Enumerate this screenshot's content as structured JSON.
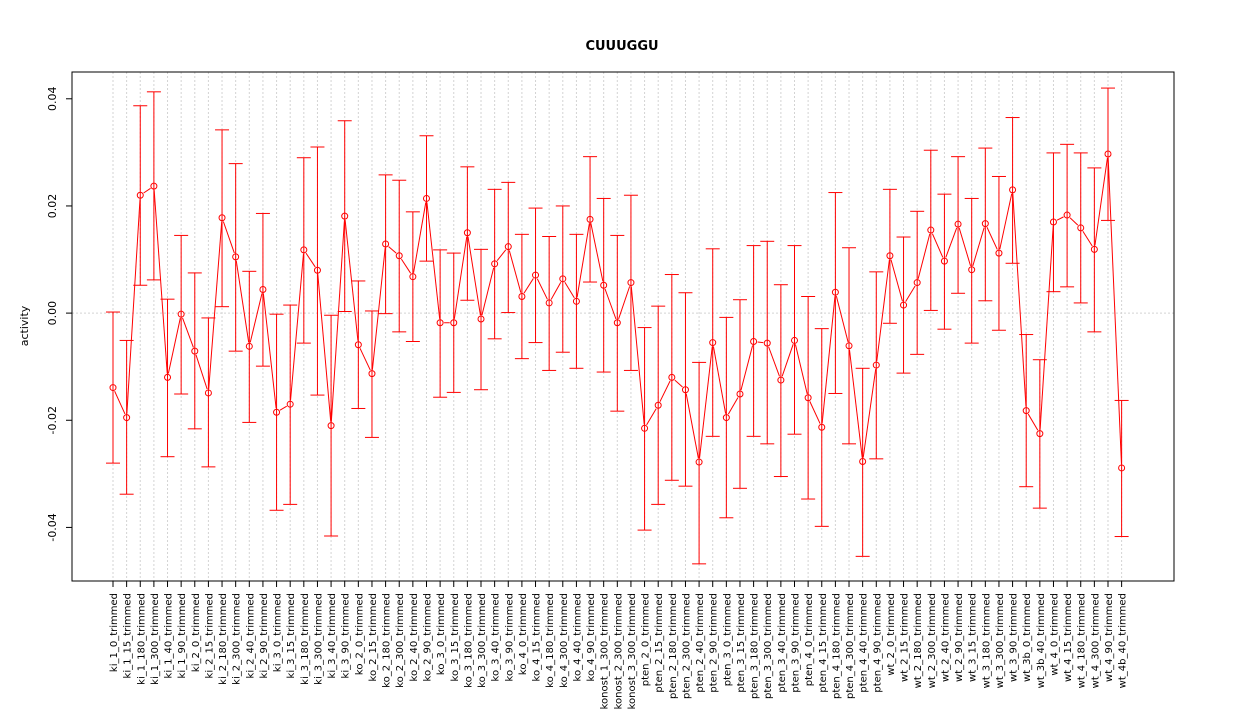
{
  "chart_data": {
    "type": "line",
    "title": "CUUUGGU",
    "xlabel": "",
    "ylabel": "activity",
    "ylim": [
      -0.05,
      0.045
    ],
    "yticks": [
      -0.04,
      -0.02,
      0.0,
      0.02,
      0.04
    ],
    "ytick_labels": [
      "-0.04",
      "-0.02",
      "0.00",
      "0.02",
      "0.04"
    ],
    "grid": true,
    "reference_line": 0.0,
    "series_color": "#ff0000",
    "grid_color": "#d3d3d3",
    "categories": [
      "ki_1_0_trimmed",
      "ki_1_15_trimmed",
      "ki_1_180_trimmed",
      "ki_1_300_trimmed",
      "ki_1_40_trimmed",
      "ki_1_90_trimmed",
      "ki_2_0_trimmed",
      "ki_2_15_trimmed",
      "ki_2_180_trimmed",
      "ki_2_300_trimmed",
      "ki_2_40_trimmed",
      "ki_2_90_trimmed",
      "ki_3_0_trimmed",
      "ki_3_15_trimmed",
      "ki_3_180_trimmed",
      "ki_3_300_trimmed",
      "ki_3_40_trimmed",
      "ki_3_90_trimmed",
      "ko_2_0_trimmed",
      "ko_2_15_trimmed",
      "ko_2_180_trimmed",
      "ko_2_300_trimmed",
      "ko_2_40_trimmed",
      "ko_2_90_trimmed",
      "ko_3_0_trimmed",
      "ko_3_15_trimmed",
      "ko_3_180_trimmed",
      "ko_3_300_trimmed",
      "ko_3_40_trimmed",
      "ko_3_90_trimmed",
      "ko_4_0_trimmed",
      "ko_4_15_trimmed",
      "ko_4_180_trimmed",
      "ko_4_300_trimmed",
      "ko_4_40_trimmed",
      "ko_4_90_trimmed",
      "konost_1_300_trimmed",
      "konost_2_300_trimmed",
      "konost_3_300_trimmed",
      "pten_2_0_trimmed",
      "pten_2_15_trimmed",
      "pten_2_180_trimmed",
      "pten_2_300_trimmed",
      "pten_2_40_trimmed",
      "pten_2_90_trimmed",
      "pten_3_0_trimmed",
      "pten_3_15_trimmed",
      "pten_3_180_trimmed",
      "pten_3_300_trimmed",
      "pten_3_40_trimmed",
      "pten_3_90_trimmed",
      "pten_4_0_trimmed",
      "pten_4_15_trimmed",
      "pten_4_180_trimmed",
      "pten_4_300_trimmed",
      "pten_4_40_trimmed",
      "pten_4_90_trimmed",
      "wt_2_0_trimmed",
      "wt_2_15_trimmed",
      "wt_2_180_trimmed",
      "wt_2_300_trimmed",
      "wt_2_40_trimmed",
      "wt_2_90_trimmed",
      "wt_3_15_trimmed",
      "wt_3_180_trimmed",
      "wt_3_300_trimmed",
      "wt_3_90_trimmed",
      "wt_3b_0_trimmed",
      "wt_3b_40_trimmed",
      "wt_4_0_trimmed",
      "wt_4_15_trimmed",
      "wt_4_180_trimmed",
      "wt_4_300_trimmed",
      "wt_4_90_trimmed",
      "wt_4b_40_trimmed"
    ],
    "values": [
      -0.0139,
      -0.0195,
      0.022,
      0.0237,
      -0.012,
      -0.0002,
      -0.0071,
      -0.0149,
      0.0178,
      0.0105,
      -0.0062,
      0.0044,
      -0.0185,
      -0.017,
      0.0118,
      0.008,
      -0.021,
      0.0181,
      -0.0059,
      -0.0113,
      0.0129,
      0.0107,
      0.0068,
      0.0214,
      -0.0018,
      -0.0018,
      0.015,
      -0.0011,
      0.0092,
      0.0124,
      0.0031,
      0.0071,
      0.0019,
      0.0064,
      0.0022,
      0.0175,
      0.0052,
      -0.0018,
      0.0057,
      -0.0215,
      -0.0172,
      -0.012,
      -0.0143,
      -0.0278,
      -0.0055,
      -0.0195,
      -0.0151,
      -0.0053,
      -0.0056,
      -0.0125,
      -0.0051,
      -0.0158,
      -0.0213,
      0.0039,
      -0.0061,
      -0.0277,
      -0.0097,
      0.0107,
      0.0015,
      0.0057,
      0.0155,
      0.0097,
      0.0166,
      0.0081,
      0.0167,
      0.0112,
      0.023,
      -0.0182,
      -0.0225,
      0.017,
      0.0183,
      0.0159,
      0.0119,
      0.0297,
      -0.0289
    ],
    "error_low": [
      -0.028,
      -0.0338,
      0.0052,
      0.0062,
      -0.0268,
      -0.0151,
      -0.0216,
      -0.0287,
      0.0012,
      -0.0071,
      -0.0204,
      -0.0099,
      -0.0368,
      -0.0357,
      -0.0056,
      -0.0153,
      -0.0416,
      0.0003,
      -0.0178,
      -0.0232,
      -0.0001,
      -0.0035,
      -0.0053,
      0.0097,
      -0.0157,
      -0.0148,
      0.0024,
      -0.0143,
      -0.0048,
      0.0001,
      -0.0085,
      -0.0055,
      -0.0107,
      -0.0073,
      -0.0103,
      0.0058,
      -0.011,
      -0.0183,
      -0.0107,
      -0.0405,
      -0.0357,
      -0.0312,
      -0.0323,
      -0.0468,
      -0.023,
      -0.0382,
      -0.0327,
      -0.023,
      -0.0244,
      -0.0305,
      -0.0226,
      -0.0347,
      -0.0398,
      -0.015,
      -0.0244,
      -0.0454,
      -0.0272,
      -0.0019,
      -0.0112,
      -0.0077,
      0.0005,
      -0.003,
      0.0037,
      -0.0056,
      0.0023,
      -0.0032,
      0.0093,
      -0.0324,
      -0.0364,
      0.004,
      0.0049,
      0.0019,
      -0.0035,
      0.0173,
      -0.0417
    ],
    "error_high": [
      0.0002,
      -0.0051,
      0.0387,
      0.0413,
      0.0026,
      0.0145,
      0.0075,
      -0.0009,
      0.0342,
      0.0279,
      0.0078,
      0.0186,
      -0.0002,
      0.0015,
      0.029,
      0.031,
      -0.0004,
      0.0359,
      0.006,
      0.0004,
      0.0258,
      0.0248,
      0.0189,
      0.0331,
      0.0118,
      0.0112,
      0.0273,
      0.0119,
      0.0231,
      0.0244,
      0.0147,
      0.0196,
      0.0143,
      0.02,
      0.0147,
      0.0292,
      0.0214,
      0.0145,
      0.022,
      -0.0027,
      0.0013,
      0.0072,
      0.0038,
      -0.0092,
      0.012,
      -0.0008,
      0.0025,
      0.0126,
      0.0134,
      0.0053,
      0.0126,
      0.0031,
      -0.0029,
      0.0225,
      0.0122,
      -0.0103,
      0.0077,
      0.0231,
      0.0142,
      0.019,
      0.0304,
      0.0222,
      0.0292,
      0.0214,
      0.0308,
      0.0255,
      0.0365,
      -0.004,
      -0.0087,
      0.0299,
      0.0315,
      0.0299,
      0.0271,
      0.042,
      -0.0163
    ]
  }
}
